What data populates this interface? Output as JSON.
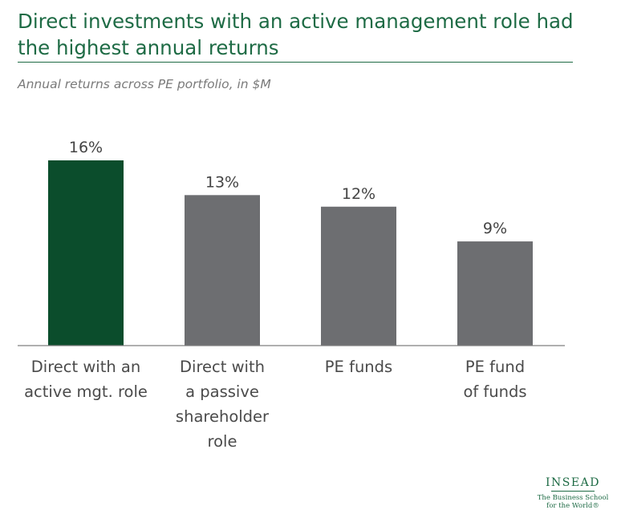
{
  "chart_data": {
    "type": "bar",
    "title": "Direct investments with an active management role had the highest annual returns",
    "subtitle": "Annual returns across PE portfolio, in $M",
    "categories": [
      [
        "Direct with an",
        "active mgt. role"
      ],
      [
        "Direct with",
        "a passive",
        "shareholder",
        "role"
      ],
      [
        "PE funds"
      ],
      [
        "PE fund",
        "of funds"
      ]
    ],
    "values": [
      16,
      13,
      12,
      9
    ],
    "data_labels": [
      "16%",
      "13%",
      "12%",
      "9%"
    ],
    "ylim": [
      0,
      16
    ],
    "colors": [
      "#0b4d2c",
      "#6d6e71",
      "#6d6e71",
      "#6d6e71"
    ],
    "axis_color": "#7f7f7f"
  },
  "title": {
    "line1": "Direct investments with an active management role had",
    "line2": "the highest annual returns"
  },
  "subtitle": "Annual returns across PE portfolio, in $M",
  "logo": {
    "name": "INSEAD",
    "tagline_line1": "The Business School",
    "tagline_line2": "for the World®"
  }
}
